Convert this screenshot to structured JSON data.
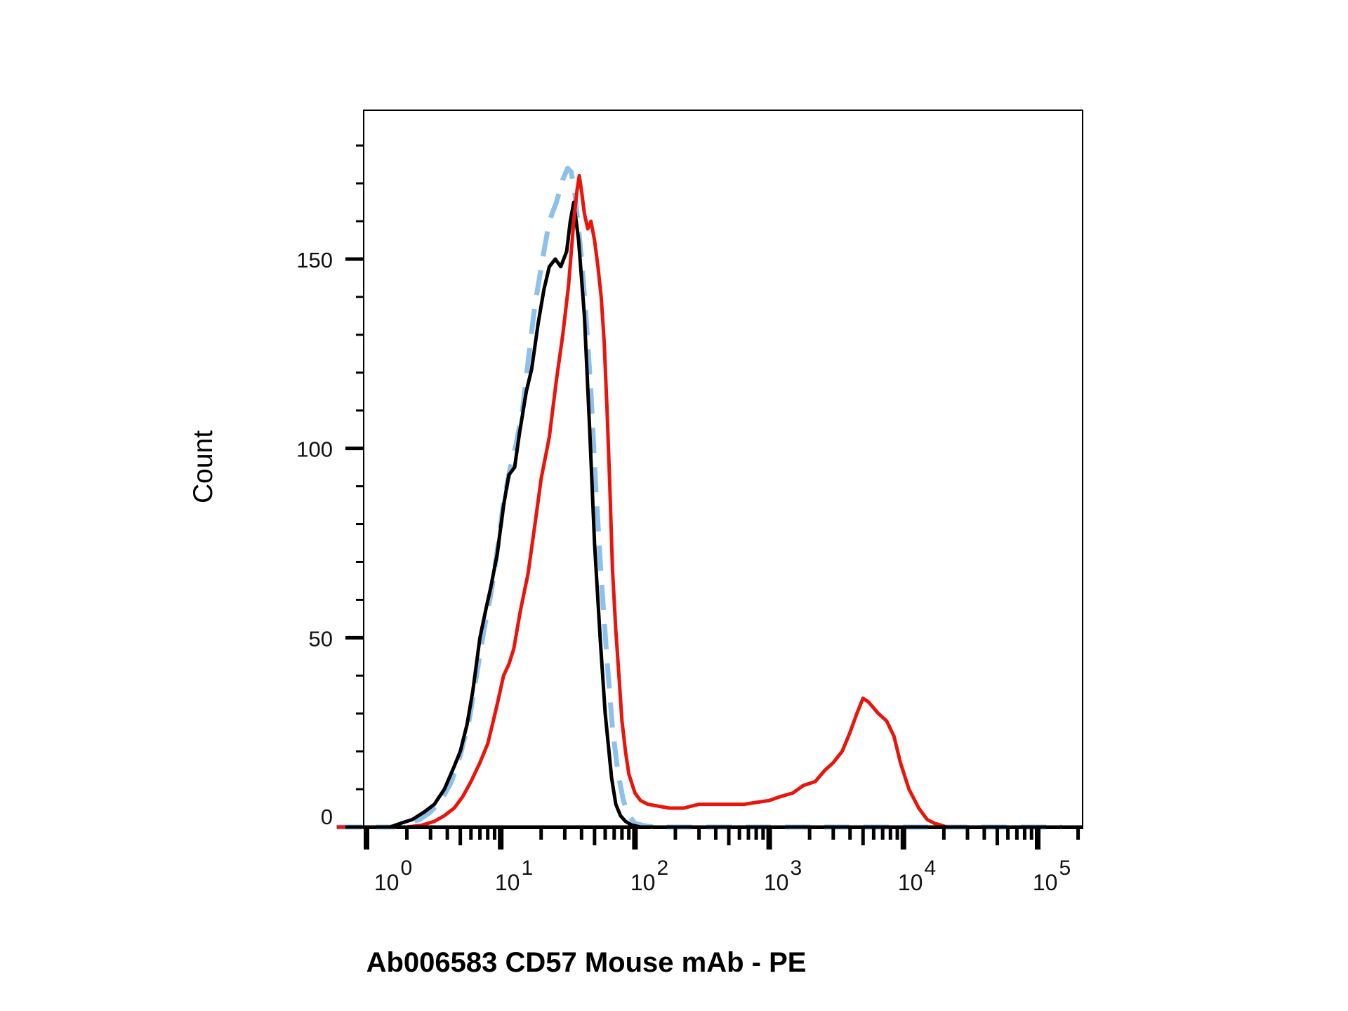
{
  "chart_data": {
    "type": "line",
    "title": "",
    "xlabel": "Ab006583 CD57 Mouse mAb - PE",
    "ylabel": "Count",
    "xscale": "log",
    "xlim": [
      0.6,
      150000
    ],
    "ylim": [
      0,
      190
    ],
    "grid": false,
    "y_ticks": [
      0,
      50,
      100,
      150
    ],
    "y_tick_labels": [
      "0",
      "50",
      "100",
      "150"
    ],
    "x_ticks": [
      1,
      10,
      100,
      1000,
      10000,
      100000
    ],
    "x_tick_labels": [
      {
        "base": "10",
        "exp": "0"
      },
      {
        "base": "10",
        "exp": "1"
      },
      {
        "base": "10",
        "exp": "2"
      },
      {
        "base": "10",
        "exp": "3"
      },
      {
        "base": "10",
        "exp": "4"
      },
      {
        "base": "10",
        "exp": "5"
      }
    ],
    "series": [
      {
        "color": "#000000",
        "style": "solid",
        "x": [
          0.6,
          1.5,
          1.8,
          2.2,
          2.7,
          3.2,
          3.8,
          4.5,
          5.0,
          5.6,
          6.2,
          7.0,
          7.8,
          8.4,
          9.4,
          10.5,
          11.5,
          12.7,
          13.8,
          15.5,
          17.0,
          19.0,
          21.0,
          23.0,
          25.5,
          28.0,
          31.0,
          33.0,
          35.0,
          38.0,
          42.0,
          46.0,
          50.0,
          55.0,
          60.0,
          67.0,
          72.0,
          78.0,
          85.0,
          95.0,
          110.0,
          130.0,
          150000
        ],
        "y": [
          0,
          0,
          1,
          2,
          4,
          6,
          10,
          16,
          20,
          27,
          36,
          50,
          58,
          63,
          72,
          85,
          93,
          95,
          104,
          115,
          121,
          133,
          142,
          148,
          150,
          148,
          152,
          160,
          165,
          155,
          135,
          105,
          75,
          50,
          30,
          13,
          6,
          3,
          1.5,
          0.5,
          0,
          0,
          0
        ]
      },
      {
        "color": "#8ec0ec",
        "style": "dashed",
        "x": [
          0.6,
          1.6,
          2.0,
          2.5,
          3.0,
          3.6,
          4.3,
          5.0,
          5.8,
          6.6,
          7.5,
          8.5,
          9.6,
          10.5,
          11.8,
          13.0,
          14.5,
          16.0,
          18.0,
          20.5,
          23.0,
          26.0,
          29.0,
          31.5,
          33.5,
          35.5,
          37.5,
          40.0,
          43.0,
          47.0,
          51.0,
          56.0,
          62.0,
          68.0,
          75.0,
          82.0,
          90.0,
          100.0,
          115.0,
          140.0,
          200.0,
          150000
        ],
        "y": [
          0,
          0,
          1,
          2,
          4,
          7,
          12,
          19,
          28,
          40,
          52,
          62,
          75,
          86,
          95,
          101,
          110,
          123,
          138,
          150,
          160,
          165,
          171,
          174,
          173,
          168,
          160,
          150,
          136,
          115,
          90,
          66,
          44,
          26,
          14,
          7,
          3,
          1,
          0.4,
          0,
          0,
          0
        ]
      },
      {
        "color": "#e8150d",
        "style": "solid",
        "x": [
          0.6,
          2.0,
          2.6,
          3.2,
          3.8,
          4.5,
          5.2,
          6.0,
          7.0,
          8.0,
          8.8,
          9.5,
          10.5,
          11.5,
          12.5,
          14.0,
          16.0,
          18.0,
          20.0,
          23.0,
          26.0,
          29.0,
          32.0,
          35.0,
          37.0,
          38.5,
          40.0,
          42.0,
          44.5,
          47.0,
          50.0,
          53.0,
          56.0,
          59.0,
          62.0,
          65.0,
          68.0,
          72.0,
          76.0,
          80.0,
          85.0,
          90.0,
          100.0,
          110.0,
          125.0,
          150.0,
          180.0,
          230.0,
          300.0,
          400.0,
          500.0,
          650.0,
          800.0,
          1000.0,
          1200.0,
          1500.0,
          1800.0,
          2200.0,
          2600.0,
          3000.0,
          3500.0,
          4000.0,
          4500.0,
          5000.0,
          5500.0,
          6500.0,
          7500.0,
          8500.0,
          9500.0,
          11000.0,
          13000.0,
          15000.0,
          17000.0,
          19000.0,
          21000.0,
          23000.0,
          26000.0,
          150000
        ],
        "y": [
          0,
          0,
          0.5,
          1.5,
          3,
          5,
          8,
          12,
          17,
          22,
          28,
          33,
          40,
          43,
          47,
          57,
          67,
          80,
          92,
          103,
          118,
          130,
          143,
          160,
          168,
          172,
          168,
          162,
          158,
          160,
          155,
          148,
          140,
          128,
          110,
          90,
          68,
          52,
          40,
          28,
          20,
          14,
          9,
          7,
          6,
          5.5,
          5,
          5,
          6,
          6,
          6,
          6,
          6.5,
          7,
          8,
          9,
          11,
          12,
          15,
          17,
          20,
          25,
          30,
          34,
          33,
          30,
          28,
          24,
          17,
          10,
          5,
          2,
          1,
          0.5,
          0,
          0,
          0,
          0
        ]
      }
    ]
  }
}
